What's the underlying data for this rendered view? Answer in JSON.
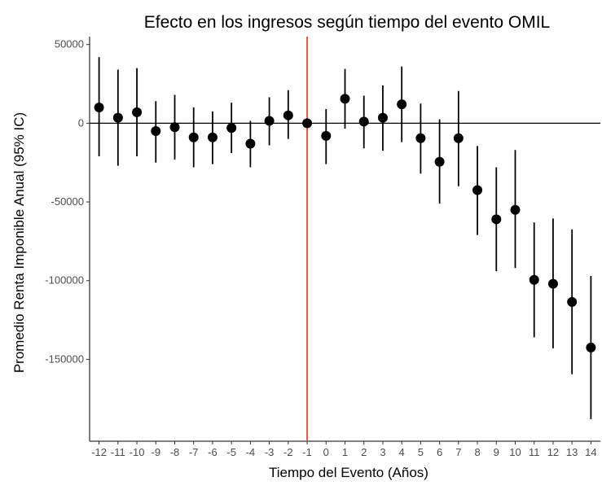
{
  "chart_data": {
    "type": "scatter",
    "title": "Efecto en los ingresos según tiempo del evento OMIL",
    "xlabel": "Tiempo del Evento (Años)",
    "ylabel": "Promedio Renta Imponible Anual  (95% IC)",
    "x_tick_labels": [
      "-12",
      "-11",
      "-10",
      "-9",
      "-8",
      "-7",
      "-6",
      "-5",
      "-4",
      "-3",
      "-2",
      "-1",
      "0",
      "1",
      "2",
      "3",
      "4",
      "5",
      "6",
      "7",
      "8",
      "9",
      "10",
      "11",
      "12",
      "13",
      "14"
    ],
    "y_tick_labels": [
      "50000",
      "0",
      "-50000",
      "-100000",
      "-150000"
    ],
    "y_tick_values": [
      50000,
      0,
      -50000,
      -100000,
      -150000
    ],
    "ylim": [
      -202000,
      55000
    ],
    "xlim": [
      -12.5,
      14.5
    ],
    "reference_hline": 0,
    "reference_vline": -1,
    "reference_vline_color": "#e8534f",
    "grid": false,
    "series": [
      {
        "points": [
          {
            "x": -12,
            "y": 10000,
            "lo": -21000,
            "hi": 42000
          },
          {
            "x": -11,
            "y": 3500,
            "lo": -27000,
            "hi": 34000
          },
          {
            "x": -10,
            "y": 7000,
            "lo": -21000,
            "hi": 35000
          },
          {
            "x": -9,
            "y": -5000,
            "lo": -25000,
            "hi": 14000
          },
          {
            "x": -8,
            "y": -2500,
            "lo": -23000,
            "hi": 18000
          },
          {
            "x": -7,
            "y": -9000,
            "lo": -28000,
            "hi": 10000
          },
          {
            "x": -6,
            "y": -9000,
            "lo": -26000,
            "hi": 7500
          },
          {
            "x": -5,
            "y": -3000,
            "lo": -19000,
            "hi": 13000
          },
          {
            "x": -4,
            "y": -13000,
            "lo": -28000,
            "hi": 1500
          },
          {
            "x": -3,
            "y": 1500,
            "lo": -14000,
            "hi": 16500
          },
          {
            "x": -2,
            "y": 5000,
            "lo": -10000,
            "hi": 21000
          },
          {
            "x": -1,
            "y": 0,
            "lo": 0,
            "hi": 0
          },
          {
            "x": 0,
            "y": -8000,
            "lo": -26000,
            "hi": 9000
          },
          {
            "x": 1,
            "y": 15500,
            "lo": -3500,
            "hi": 34500
          },
          {
            "x": 2,
            "y": 1000,
            "lo": -16000,
            "hi": 17500
          },
          {
            "x": 3,
            "y": 3500,
            "lo": -17500,
            "hi": 24000
          },
          {
            "x": 4,
            "y": 12000,
            "lo": -12000,
            "hi": 36000
          },
          {
            "x": 5,
            "y": -9500,
            "lo": -32000,
            "hi": 12500
          },
          {
            "x": 6,
            "y": -24500,
            "lo": -51000,
            "hi": 2500
          },
          {
            "x": 7,
            "y": -9500,
            "lo": -40000,
            "hi": 20500
          },
          {
            "x": 8,
            "y": -42500,
            "lo": -71000,
            "hi": -14500
          },
          {
            "x": 9,
            "y": -61000,
            "lo": -94000,
            "hi": -28000
          },
          {
            "x": 10,
            "y": -55000,
            "lo": -92000,
            "hi": -17000
          },
          {
            "x": 11,
            "y": -99500,
            "lo": -136000,
            "hi": -63000
          },
          {
            "x": 12,
            "y": -102000,
            "lo": -143000,
            "hi": -60500
          },
          {
            "x": 13,
            "y": -113500,
            "lo": -159500,
            "hi": -67500
          },
          {
            "x": 14,
            "y": -142500,
            "lo": -188000,
            "hi": -97000
          }
        ]
      }
    ]
  }
}
